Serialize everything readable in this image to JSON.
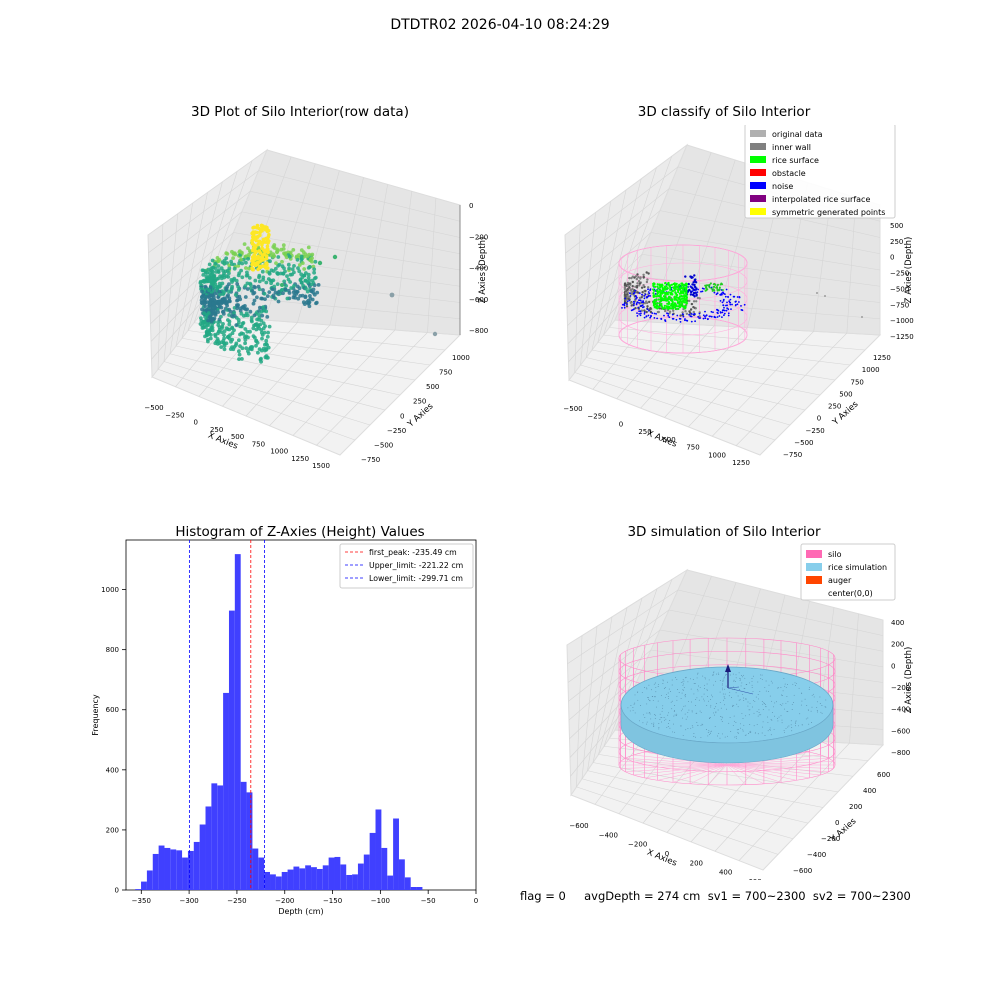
{
  "figure": {
    "suptitle": "DTDTR02 2026-04-10 08:24:29"
  },
  "panel_titles": {
    "raw": "3D Plot of Silo Interior(row data)",
    "classify": "3D classify of Silo Interior",
    "histogram": "Histogram of Z-Axies (Height) Values",
    "simulation": "3D simulation of Silo Interior"
  },
  "status_line": "flag = 0     avgDepth = 274 cm  sv1 = 700~2300  sv2 = 700~2300",
  "chart_data": [
    {
      "type": "scatter",
      "title": "3D Plot of Silo Interior(row data)",
      "xlabel": "X Axies",
      "ylabel": "Y Axies",
      "zlabel": "Z Axies (Depth)",
      "x_ticks": [
        "−500",
        "−250",
        "0",
        "250",
        "500",
        "750",
        "1000",
        "1250",
        "1500"
      ],
      "y_ticks": [
        "−750",
        "−500",
        "−250",
        "0",
        "250",
        "500",
        "750",
        "1000"
      ],
      "z_ticks": [
        "−800",
        "−600",
        "−400",
        "−200",
        "0"
      ],
      "colormap": [
        "#2a788e",
        "#22a884",
        "#7ad151",
        "#fde725"
      ]
    },
    {
      "type": "scatter",
      "title": "3D classify of Silo Interior",
      "xlabel": "X Axies",
      "ylabel": "Y Axies",
      "zlabel": "Z Axies (Depth)",
      "x_ticks": [
        "−500",
        "−250",
        "0",
        "250",
        "500",
        "750",
        "1000",
        "1250"
      ],
      "y_ticks": [
        "−750",
        "−500",
        "−250",
        "0",
        "250",
        "500",
        "750",
        "1000",
        "1250"
      ],
      "z_ticks": [
        "−1250",
        "−1000",
        "−750",
        "−500",
        "−250",
        "0",
        "250",
        "500"
      ],
      "legend_position": "top-right",
      "legend": [
        {
          "label": "original data",
          "color": "#b0b0b0"
        },
        {
          "label": "inner wall",
          "color": "#808080"
        },
        {
          "label": "rice surface",
          "color": "#00ff00"
        },
        {
          "label": "obstacle",
          "color": "#ff0000"
        },
        {
          "label": "noise",
          "color": "#0000ff"
        },
        {
          "label": "interpolated rice surface",
          "color": "#800080"
        },
        {
          "label": "symmetric generated points",
          "color": "#ffff00"
        }
      ]
    },
    {
      "type": "bar",
      "title": "Histogram of Z-Axies (Height) Values",
      "xlabel": "Depth (cm)",
      "ylabel": "Frequency",
      "xlim": [
        -366,
        0
      ],
      "ylim": [
        0,
        1165
      ],
      "x_ticks": [
        -350,
        -300,
        -250,
        -200,
        -150,
        -100,
        -50,
        0
      ],
      "y_ticks": [
        0,
        200,
        400,
        600,
        800,
        1000
      ],
      "bar_color": "#4040ff",
      "bin_start": -356.4,
      "bin_width": 6.13,
      "values": [
        3,
        28,
        65,
        120,
        148,
        140,
        135,
        132,
        108,
        130,
        160,
        218,
        278,
        355,
        348,
        656,
        930,
        1118,
        360,
        325,
        138,
        108,
        60,
        52,
        45,
        60,
        68,
        78,
        72,
        82,
        76,
        70,
        82,
        108,
        110,
        85,
        50,
        52,
        88,
        118,
        190,
        268,
        140,
        48,
        238,
        102,
        42,
        10,
        10
      ],
      "vlines": [
        {
          "label": "first_peak: -235.49 cm",
          "x": -235.49,
          "color": "#ff0000"
        },
        {
          "label": "Upper_limit: -221.22 cm",
          "x": -221.22,
          "color": "#0000ff"
        },
        {
          "label": "Lower_limit: -299.71 cm",
          "x": -299.71,
          "color": "#0000ff"
        }
      ],
      "legend_position": "top-right"
    },
    {
      "type": "area",
      "title": "3D simulation of Silo Interior",
      "xlabel": "X Axies",
      "ylabel": "Y Axies",
      "zlabel": "Z Axies (Depth)",
      "x_ticks": [
        "−600",
        "−400",
        "−200",
        "0",
        "200",
        "400",
        "600"
      ],
      "y_ticks": [
        "−600",
        "−400",
        "−200",
        "0",
        "200",
        "400",
        "600"
      ],
      "z_ticks": [
        "−800",
        "−600",
        "−400",
        "−200",
        "0",
        "200",
        "400"
      ],
      "legend_position": "top-right",
      "legend": [
        {
          "label": "silo",
          "color": "#ff69b4"
        },
        {
          "label": "rice simulation",
          "color": "#87ceeb"
        },
        {
          "label": "auger",
          "color": "#ff4500"
        },
        {
          "label": "center(0,0)",
          "color": ""
        }
      ]
    }
  ]
}
